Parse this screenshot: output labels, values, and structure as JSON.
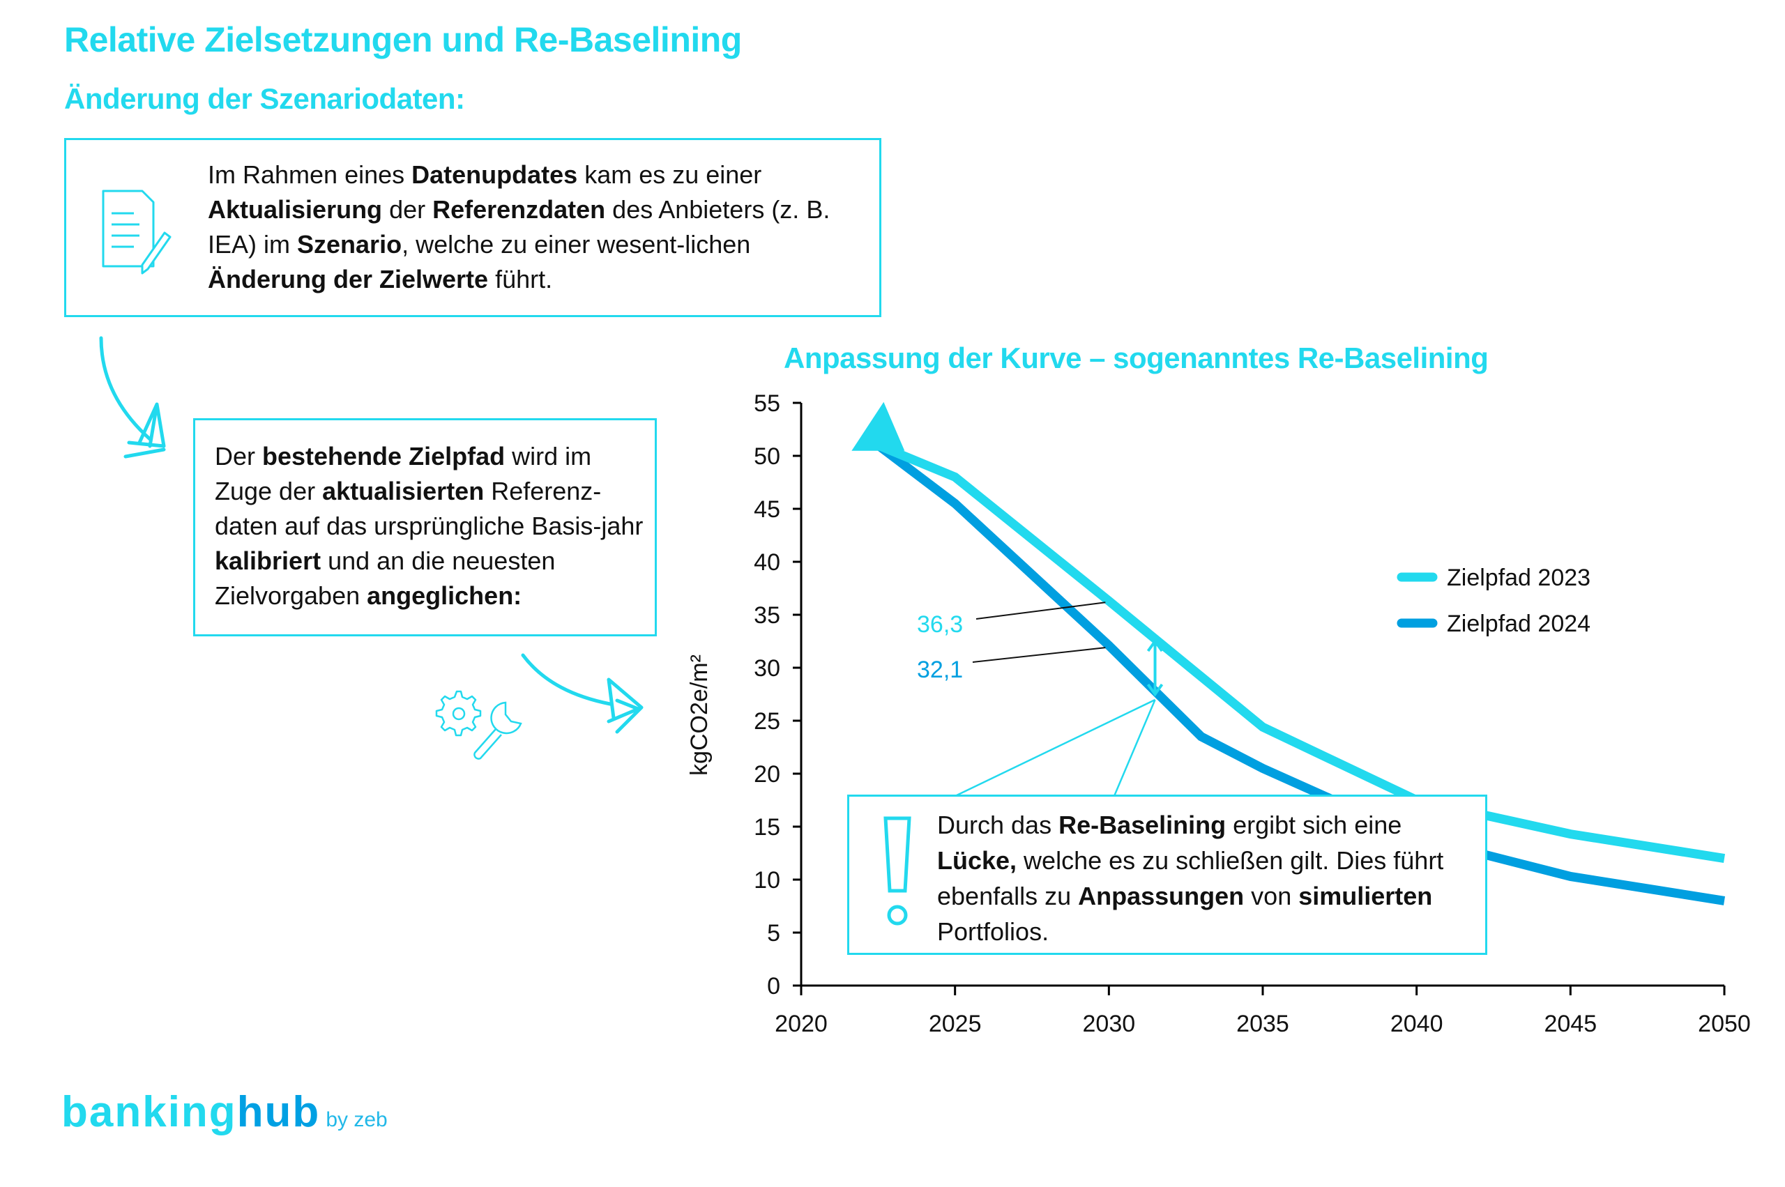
{
  "header": {
    "title": "Relative Zielsetzungen und Re-Baselining",
    "subtitle": "Änderung der Szenariodaten:"
  },
  "box1": {
    "icon": "document-pencil-icon",
    "segments": [
      {
        "t": "Im Rahmen eines ",
        "b": false
      },
      {
        "t": "Datenupdates",
        "b": true
      },
      {
        "t": " kam es zu einer ",
        "b": false
      },
      {
        "t": "Aktualisierung",
        "b": true
      },
      {
        "t": " der ",
        "b": false
      },
      {
        "t": "Referenzdaten",
        "b": true
      },
      {
        "t": " des Anbieters (z. B. IEA) im ",
        "b": false
      },
      {
        "t": "Szenario",
        "b": true
      },
      {
        "t": ", welche zu einer wesent-lichen ",
        "b": false
      },
      {
        "t": "Änderung der Zielwerte",
        "b": true
      },
      {
        "t": " führt.",
        "b": false
      }
    ]
  },
  "box2": {
    "segments": [
      {
        "t": "Der ",
        "b": false
      },
      {
        "t": "bestehende Zielpfad",
        "b": true
      },
      {
        "t": " wird im Zuge der ",
        "b": false
      },
      {
        "t": "aktualisierten",
        "b": true
      },
      {
        "t": " Referenz-daten auf das ursprüngliche Basis-jahr ",
        "b": false
      },
      {
        "t": "kalibriert",
        "b": true
      },
      {
        "t": " und an die neuesten Zielvorgaben ",
        "b": false
      },
      {
        "t": "angeglichen:",
        "b": true
      }
    ]
  },
  "box3": {
    "icon": "exclamation-icon",
    "segments": [
      {
        "t": "Durch das ",
        "b": false
      },
      {
        "t": "Re-Baselining",
        "b": true
      },
      {
        "t": " ergibt sich eine ",
        "b": false
      },
      {
        "t": "Lücke,",
        "b": true
      },
      {
        "t": " welche es zu schließen gilt. Dies führt ebenfalls zu ",
        "b": false
      },
      {
        "t": "Anpassungen",
        "b": true
      },
      {
        "t": " von ",
        "b": false
      },
      {
        "t": "simulierten",
        "b": true
      },
      {
        "t": " Portfolios.",
        "b": false
      }
    ]
  },
  "icons": {
    "tools": "gear-wrench-icon",
    "arrow1": "hand-drawn-arrow-icon",
    "arrow2": "hand-drawn-arrow-icon"
  },
  "colors": {
    "accent": "#22d9ee",
    "series2023": "#22d9ee",
    "series2024": "#009fe0"
  },
  "chart_data": {
    "type": "line",
    "title": "Anpassung der Kurve – sogenanntes Re-Baselining",
    "xlabel": "",
    "ylabel": "kgCO2e/m²",
    "xlim": [
      2020,
      2050
    ],
    "ylim": [
      0,
      55
    ],
    "xticks": [
      "2020",
      "2025",
      "2030",
      "2035",
      "2040",
      "2045",
      "2050"
    ],
    "yticks": [
      "0",
      "5",
      "10",
      "15",
      "20",
      "25",
      "30",
      "35",
      "40",
      "45",
      "50",
      "55"
    ],
    "grid": false,
    "legend_position": "right",
    "series": [
      {
        "name": "Zielpfad 2023",
        "x": [
          2022.5,
          2025,
          2030,
          2035,
          2040,
          2045,
          2050
        ],
        "y": [
          51,
          48,
          36.3,
          24.4,
          17.5,
          14.3,
          12
        ]
      },
      {
        "name": "Zielpfad 2024",
        "x": [
          2022.5,
          2025,
          2030,
          2033,
          2035,
          2040,
          2045,
          2050
        ],
        "y": [
          51,
          45.5,
          32.1,
          23.5,
          20.5,
          14,
          10.3,
          8
        ]
      }
    ],
    "start_marker": {
      "x": 2022.5,
      "y": 51,
      "shape": "triangle"
    },
    "annotations": [
      {
        "text": "36,3",
        "x": 2030,
        "y": 36.3,
        "series": "Zielpfad 2023"
      },
      {
        "text": "32,1",
        "x": 2030,
        "y": 32.1,
        "series": "Zielpfad 2024"
      }
    ],
    "gap_marker": {
      "x": 2031.5,
      "from": 32.5,
      "to": 27.5
    }
  }
}
